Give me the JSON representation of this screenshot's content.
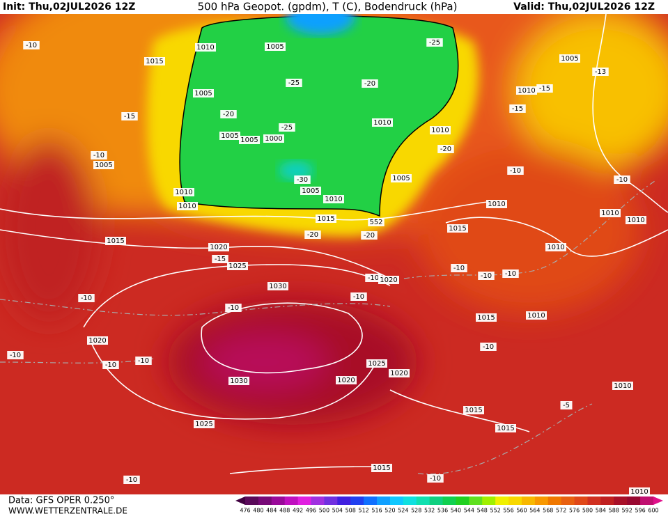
{
  "header": {
    "init": "Init: Thu,02JUL2026 12Z",
    "title": "500 hPa Geopot. (gpdm), T (C), Bodendruck (hPa)",
    "valid": "Valid: Thu,02JUL2026 12Z"
  },
  "footer": {
    "source": "Data: GFS OPER 0.250°",
    "site": "WWW.WETTERZENTRALE.DE"
  },
  "colorbar": {
    "levels": [
      476,
      480,
      484,
      488,
      492,
      496,
      500,
      504,
      508,
      512,
      516,
      520,
      524,
      528,
      532,
      536,
      540,
      544,
      548,
      552,
      556,
      560,
      564,
      568,
      572,
      576,
      580,
      584,
      588,
      592,
      596,
      600
    ],
    "colors": [
      "#5a0a5a",
      "#780a78",
      "#9a0a9a",
      "#c010c0",
      "#e020e0",
      "#a030e0",
      "#7030e0",
      "#4020e0",
      "#2040f0",
      "#1070ff",
      "#10a0ff",
      "#10c8ff",
      "#10e0e0",
      "#10e0b0",
      "#10d080",
      "#10d050",
      "#20d020",
      "#60e020",
      "#a0f000",
      "#f0f000",
      "#f8d800",
      "#f8b800",
      "#f89800",
      "#f07800",
      "#e86010",
      "#e04818",
      "#d03020",
      "#c02020",
      "#a81028",
      "#980830",
      "#c01070"
    ],
    "under_color": "#400040",
    "over_color": "#e0108a"
  },
  "contour_labels": [
    "1010",
    "1005",
    "1015",
    "-10",
    "1005",
    "-25",
    "-20",
    "-25",
    "1005",
    "-13",
    "1010",
    "-15",
    "-15",
    "-15",
    "-20",
    "-25",
    "1010",
    "1010",
    "1005",
    "1005",
    "1000",
    "-20",
    "-10",
    "1005",
    "-10",
    "-30",
    "1005",
    "1005",
    "-10",
    "1010",
    "1010",
    "1010",
    "1010",
    "1015",
    "552",
    "1010",
    "1010",
    "1015",
    "-20",
    "-20",
    "1015",
    "1020",
    "-15",
    "1025",
    "1010",
    "-10",
    "-10",
    "-10",
    "-10",
    "1020",
    "1030",
    "-10",
    "-10",
    "-10",
    "1015",
    "1010",
    "1020",
    "-10",
    "-10",
    "-10",
    "-10",
    "1025",
    "1030",
    "1020",
    "1020",
    "1010",
    "-5",
    "1015",
    "1025",
    "1015",
    "1015",
    "-10",
    "-10",
    "1010"
  ]
}
